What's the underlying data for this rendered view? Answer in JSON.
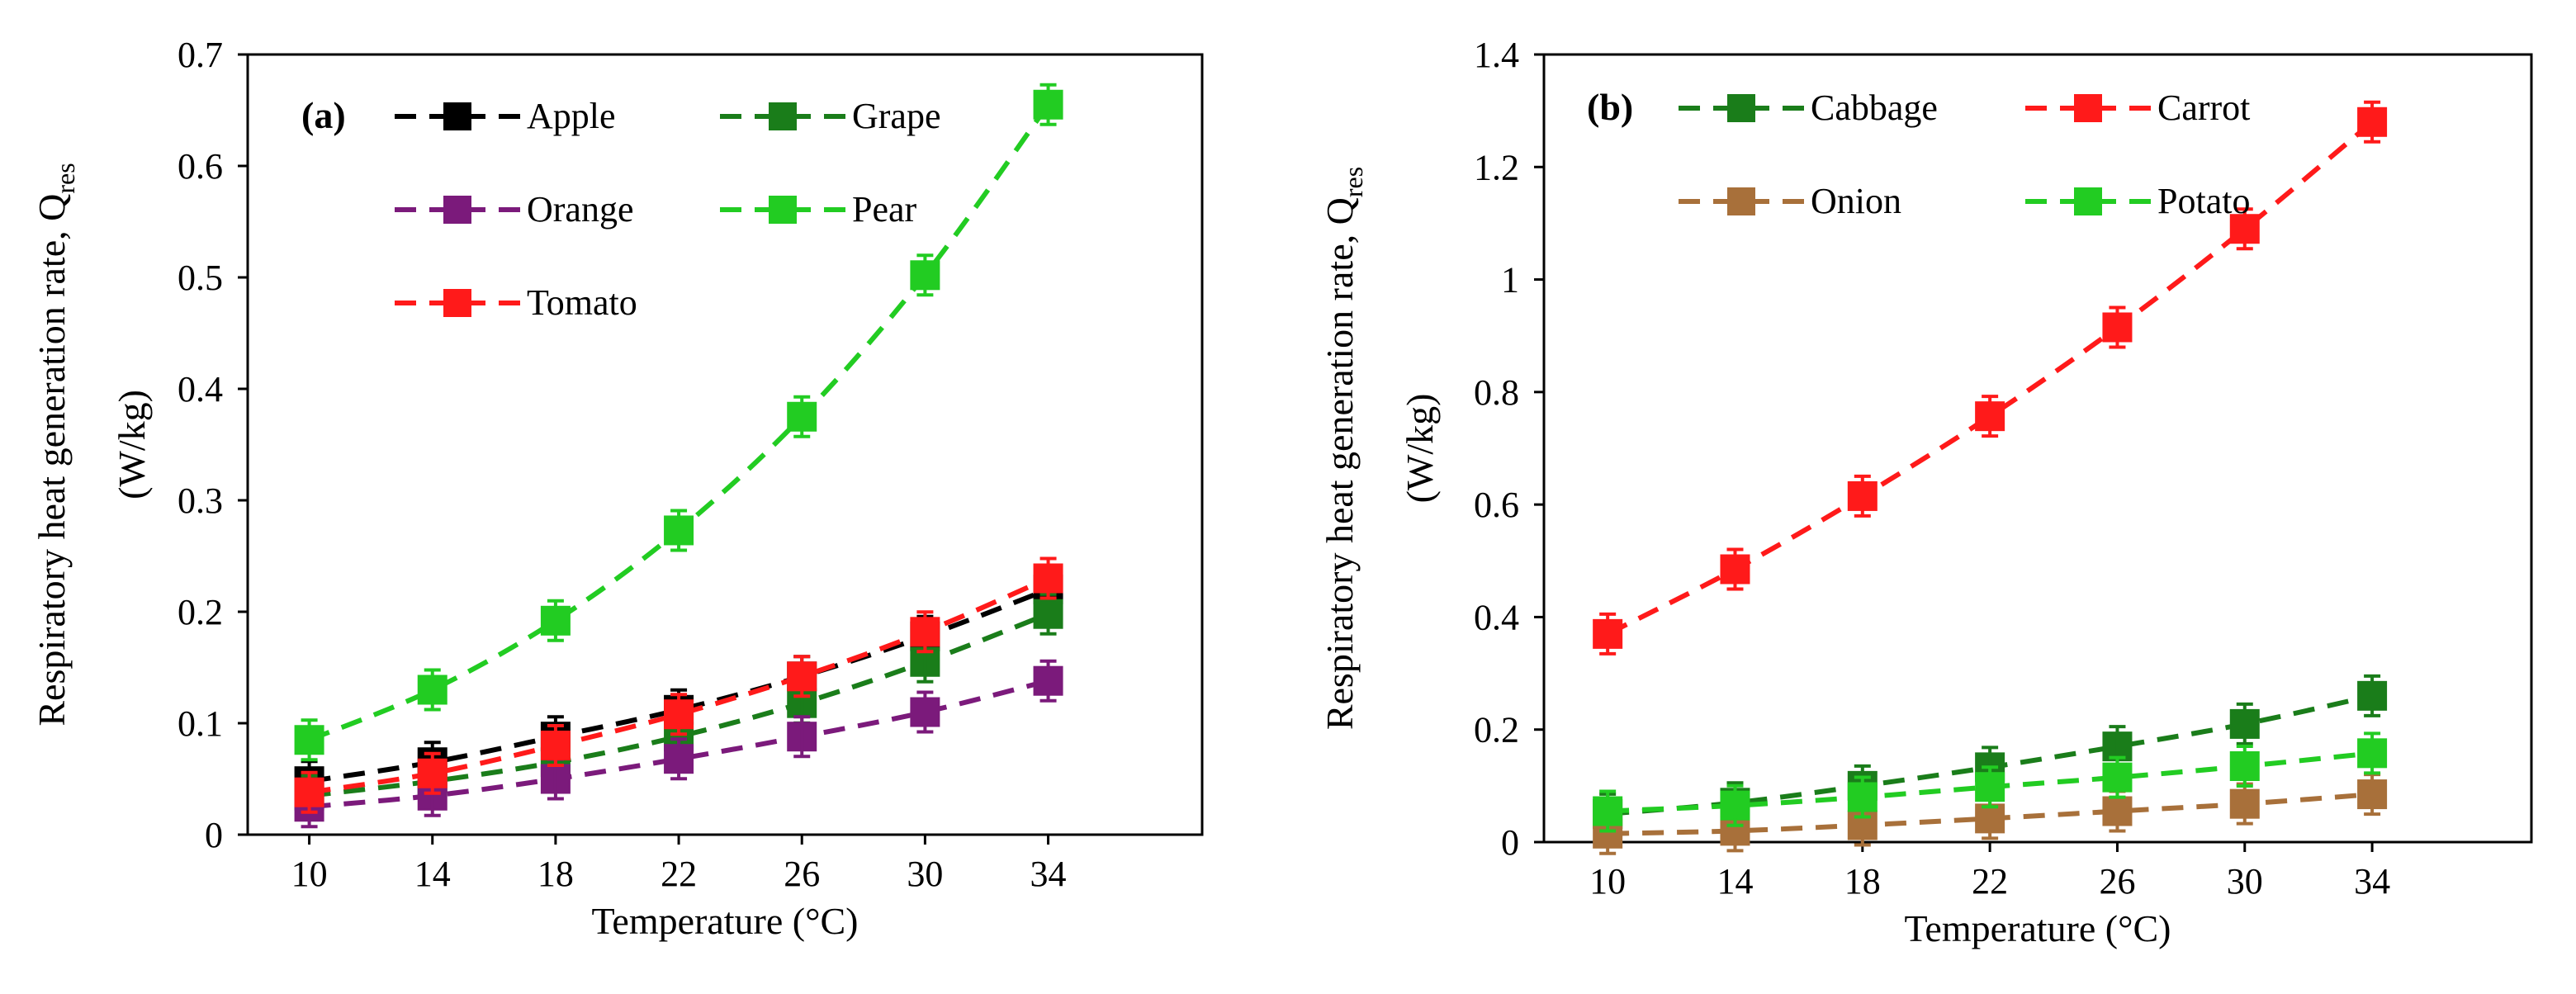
{
  "chart_data": [
    {
      "type": "line",
      "panel_label": "(a)",
      "xlabel": "Temperature (°C)",
      "ylabel_line1": "Respiratory heat generation rate, Q",
      "ylabel_sub": "res",
      "ylabel_line2": "(W/kg)",
      "x": [
        10,
        14,
        18,
        22,
        26,
        30,
        34
      ],
      "xlim": [
        8,
        39
      ],
      "ylim": [
        0,
        0.7
      ],
      "yticks": [
        0,
        0.1,
        0.2,
        0.3,
        0.4,
        0.5,
        0.6,
        0.7
      ],
      "ytick_labels": [
        "0",
        "0.1",
        "0.2",
        "0.3",
        "0.4",
        "0.5",
        "0.6",
        "0.7"
      ],
      "xtick_labels": [
        "10",
        "14",
        "18",
        "22",
        "26",
        "30",
        "34"
      ],
      "series": [
        {
          "name": "Apple",
          "color": "#000000",
          "values": [
            0.048,
            0.065,
            0.088,
            0.112,
            0.142,
            0.178,
            0.22
          ]
        },
        {
          "name": "Grape",
          "color": "#1a7d1a",
          "values": [
            0.035,
            0.048,
            0.065,
            0.088,
            0.118,
            0.155,
            0.198
          ]
        },
        {
          "name": "Orange",
          "color": "#7b1a7b",
          "values": [
            0.025,
            0.035,
            0.05,
            0.068,
            0.088,
            0.11,
            0.138
          ]
        },
        {
          "name": "Pear",
          "color": "#22cc22",
          "values": [
            0.085,
            0.13,
            0.192,
            0.273,
            0.375,
            0.502,
            0.655
          ]
        },
        {
          "name": "Tomato",
          "color": "#ff1a1a",
          "values": [
            0.038,
            0.055,
            0.08,
            0.108,
            0.142,
            0.182,
            0.23
          ]
        }
      ]
    },
    {
      "type": "line",
      "panel_label": "(b)",
      "xlabel": "Temperature (°C)",
      "ylabel_line1": "Respiratory heat generation rate, Q",
      "ylabel_sub": "res",
      "ylabel_line2": "(W/kg)",
      "x": [
        10,
        14,
        18,
        22,
        26,
        30,
        34
      ],
      "xlim": [
        8,
        39
      ],
      "ylim": [
        0,
        1.4
      ],
      "yticks": [
        0,
        0.2,
        0.4,
        0.6,
        0.8,
        1.0,
        1.2,
        1.4
      ],
      "ytick_labels": [
        "0",
        "0.2",
        "0.4",
        "0.6",
        "0.8",
        "1",
        "1.2",
        "1.4"
      ],
      "xtick_labels": [
        "10",
        "14",
        "18",
        "22",
        "26",
        "30",
        "34"
      ],
      "series": [
        {
          "name": "Cabbage",
          "color": "#1a7d1a",
          "values": [
            0.05,
            0.07,
            0.1,
            0.133,
            0.17,
            0.21,
            0.26
          ]
        },
        {
          "name": "Carrot",
          "color": "#ff1a1a",
          "values": [
            0.37,
            0.485,
            0.615,
            0.757,
            0.915,
            1.09,
            1.28
          ]
        },
        {
          "name": "Onion",
          "color": "#a8703a",
          "values": [
            0.015,
            0.02,
            0.03,
            0.042,
            0.055,
            0.068,
            0.085
          ]
        },
        {
          "name": "Potato",
          "color": "#22cc22",
          "values": [
            0.055,
            0.065,
            0.08,
            0.098,
            0.115,
            0.135,
            0.158
          ]
        }
      ]
    }
  ]
}
